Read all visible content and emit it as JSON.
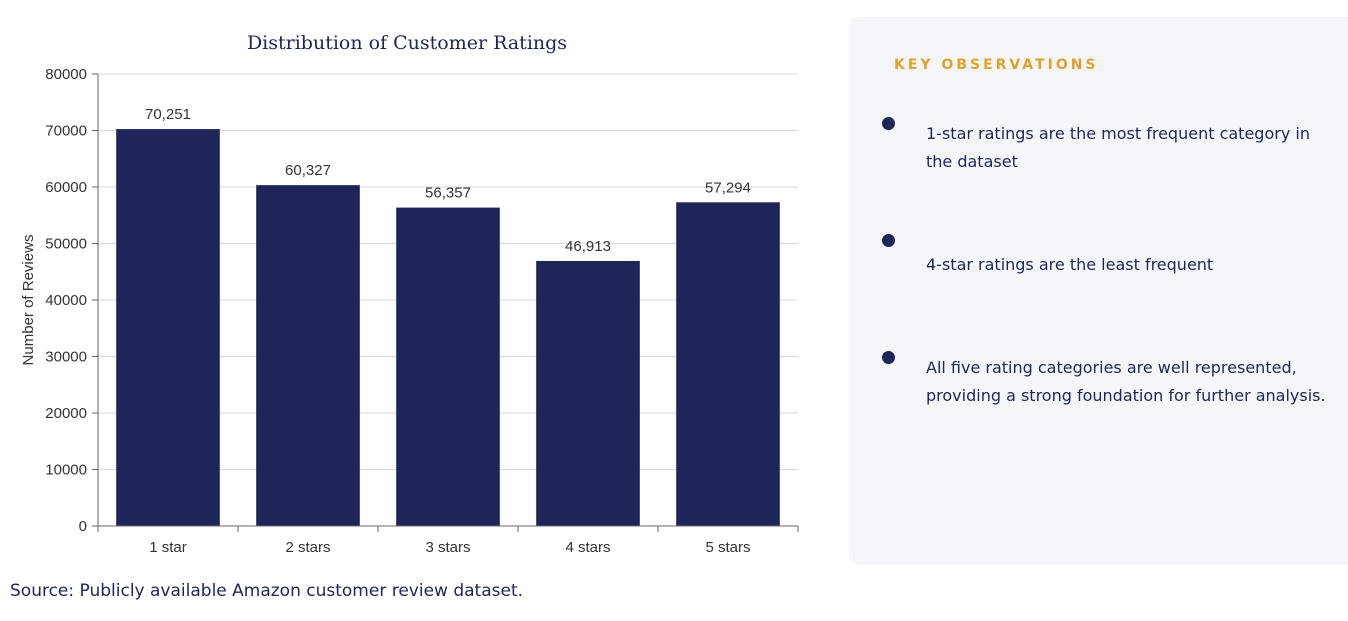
{
  "chart_data": {
    "type": "bar",
    "title": "Distribution of Customer Ratings",
    "xlabel": "",
    "ylabel": "Number of Reviews",
    "categories": [
      "1 star",
      "2 stars",
      "3 stars",
      "4 stars",
      "5 stars"
    ],
    "values": [
      70251,
      60327,
      56357,
      46913,
      57294
    ],
    "data_labels": [
      "70,251",
      "60,327",
      "56,357",
      "46,913",
      "57,294"
    ],
    "yticks": [
      0,
      10000,
      20000,
      30000,
      40000,
      50000,
      60000,
      70000,
      80000
    ],
    "ytick_labels": [
      "0",
      "10000",
      "20000",
      "30000",
      "40000",
      "50000",
      "60000",
      "70000",
      "80000"
    ],
    "ylim": [
      0,
      80000
    ],
    "grid": true,
    "legend": "none",
    "bar_color": "#1f2559"
  },
  "source": {
    "text": "Source: Publicly available Amazon customer review dataset."
  },
  "observations": {
    "heading": "KEY OBSERVATIONS",
    "items": [
      {
        "text": "1-star ratings are the most frequent category in the dataset"
      },
      {
        "text": "4-star ratings are the least frequent"
      },
      {
        "text": "All five rating categories are well represented, providing a strong foundation for further analysis."
      }
    ],
    "accent_color": "#e0a22a",
    "bullet_color": "#1f2559"
  }
}
